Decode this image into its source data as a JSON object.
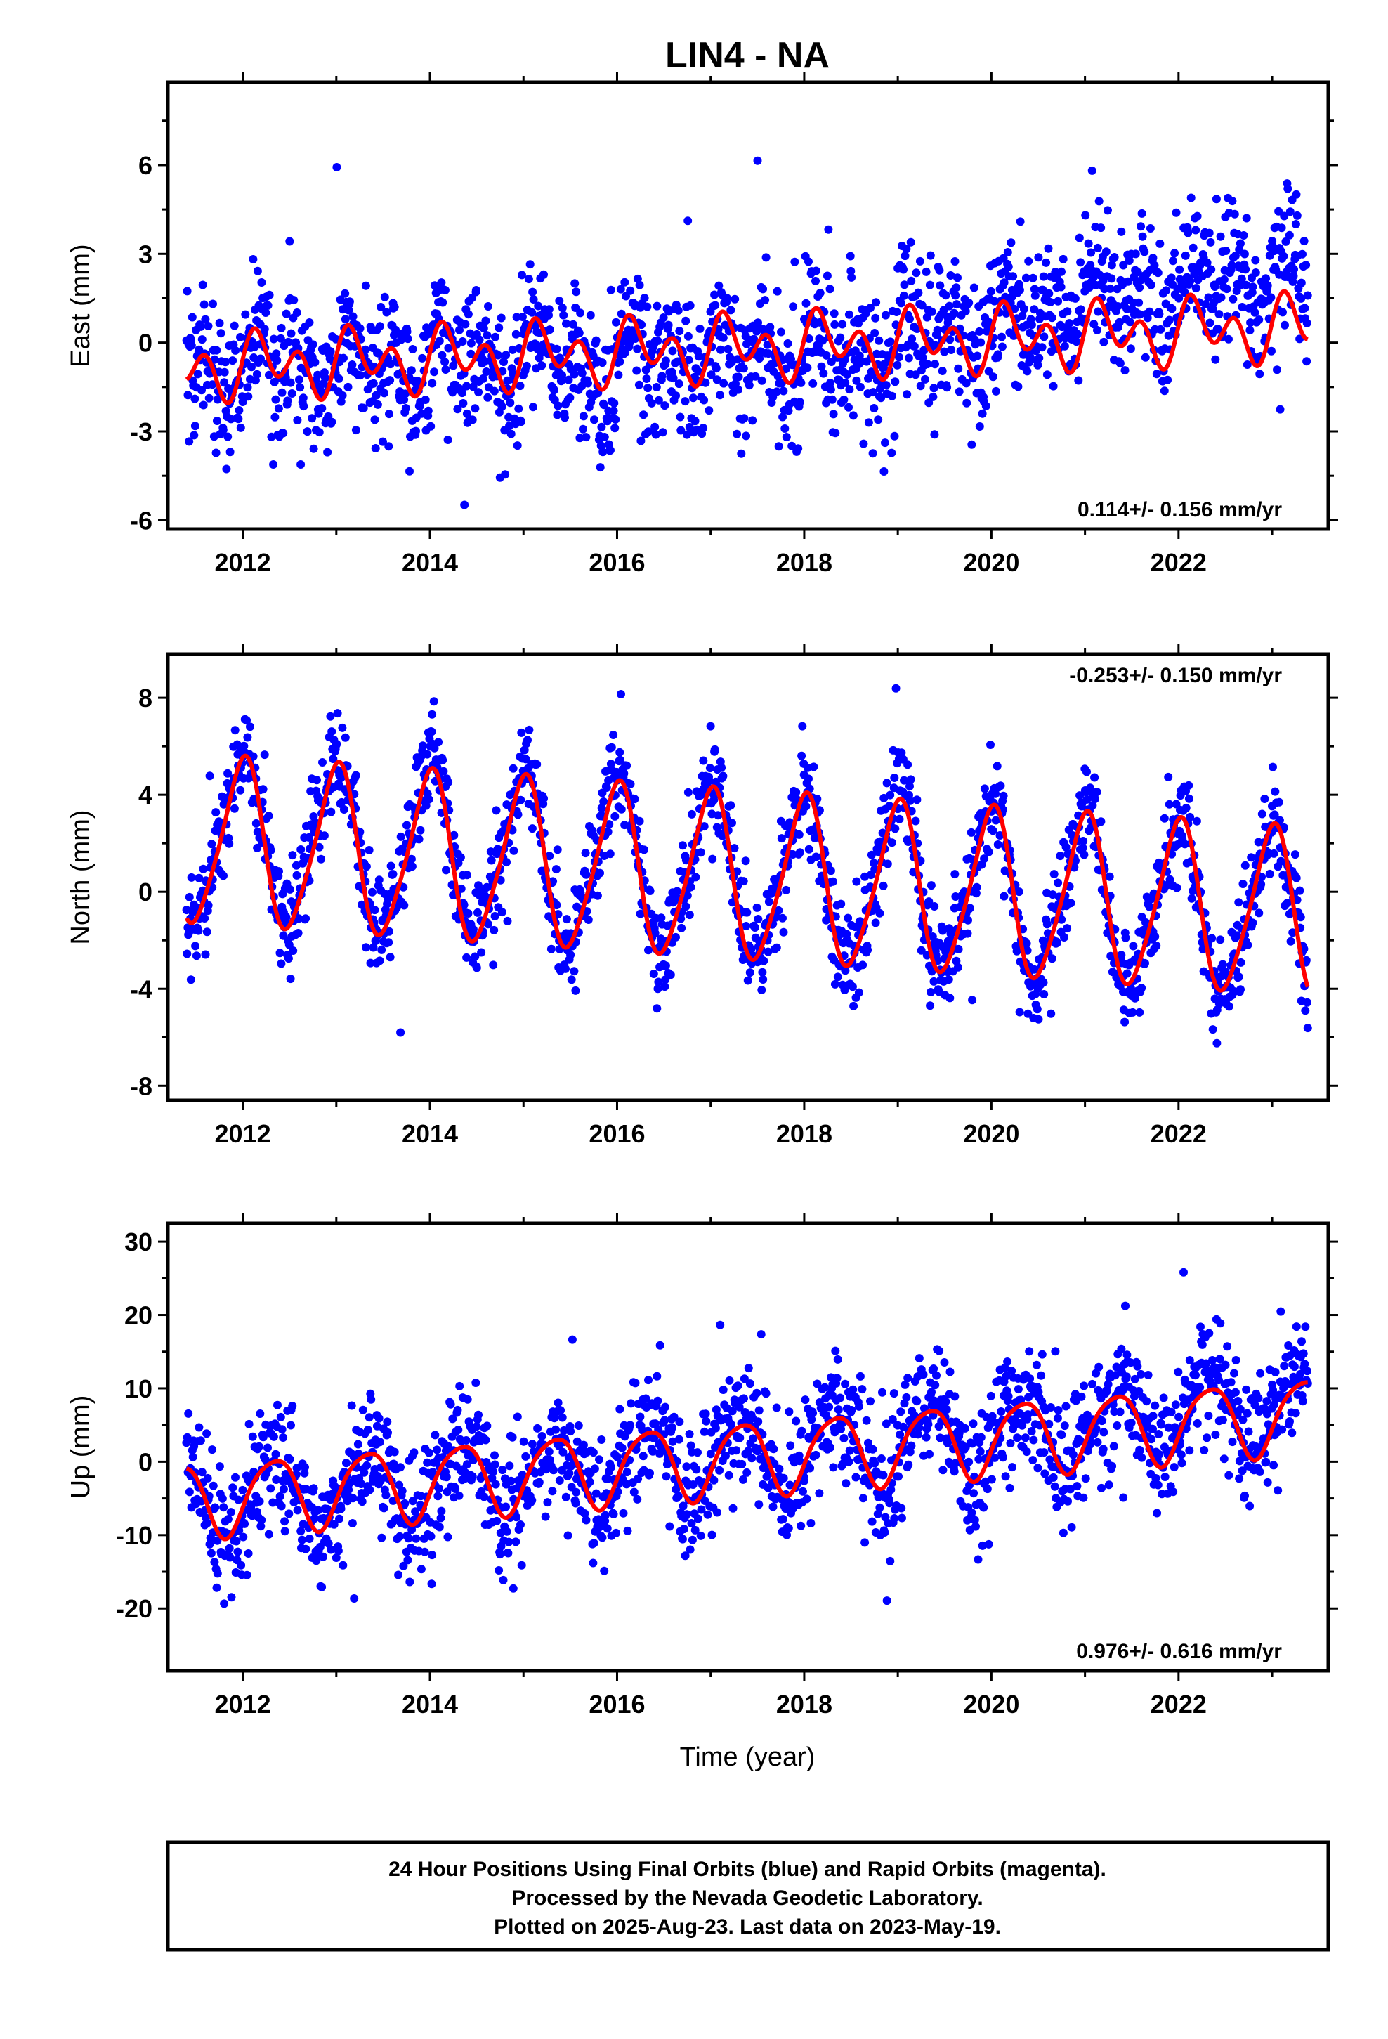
{
  "title": "LIN4 - NA",
  "xlabel": "Time (year)",
  "footer": {
    "lines": [
      "24 Hour Positions Using Final Orbits (blue) and Rapid Orbits (magenta).",
      "Processed by the Nevada Geodetic Laboratory.",
      "Plotted on 2025-Aug-23. Last data on 2023-May-19."
    ]
  },
  "colors": {
    "final_orbits": "#0000ff",
    "model_fit": "#ff0000",
    "frame": "#000000"
  },
  "chart_data": [
    {
      "type": "scatter",
      "component": "east",
      "ylabel": "East (mm)",
      "rate_label": "0.114+/- 0.156 mm/yr",
      "rate_position": "bottom-right",
      "xlim": [
        2011.2,
        2023.6
      ],
      "ylim": [
        -6.3,
        8.8
      ],
      "xticks": [
        2012,
        2014,
        2016,
        2018,
        2020,
        2022
      ],
      "yticks": [
        -6,
        -3,
        0,
        3,
        6
      ],
      "grid": false,
      "model": {
        "offset": -0.85,
        "rate": 0.114,
        "annual_amp": 0.6,
        "annual_phase": 0.1,
        "semiannual_amp": 0.8,
        "semiannual_phase": 0.2,
        "ref_epoch": 2011.4
      },
      "points": {
        "x_start": 2011.4,
        "x_end": 2023.38,
        "scatter_sd": 1.2,
        "envelope": [
          [
            2011.4,
            0.0
          ],
          [
            2018.5,
            -0.5
          ],
          [
            2019.8,
            0.3
          ],
          [
            2021.0,
            1.3
          ],
          [
            2023.4,
            1.8
          ]
        ]
      }
    },
    {
      "type": "scatter",
      "component": "north",
      "ylabel": "North (mm)",
      "rate_label": "-0.253+/- 0.150 mm/yr",
      "rate_position": "top-right",
      "xlim": [
        2011.2,
        2023.6
      ],
      "ylim": [
        -8.6,
        9.8
      ],
      "xticks": [
        2012,
        2014,
        2016,
        2018,
        2020,
        2022
      ],
      "yticks": [
        -8,
        -4,
        0,
        4,
        8
      ],
      "grid": false,
      "model": {
        "offset": 2.1,
        "rate": -0.253,
        "annual_amp": 3.4,
        "annual_phase": 1.6,
        "semiannual_amp": 0.5,
        "semiannual_phase": 0.4,
        "ref_epoch": 2011.4
      },
      "points": {
        "x_start": 2011.4,
        "x_end": 2023.38,
        "scatter_sd": 1.05,
        "envelope": [
          [
            2011.4,
            0.3
          ],
          [
            2023.4,
            0.0
          ]
        ]
      }
    },
    {
      "type": "scatter",
      "component": "up",
      "ylabel": "Up (mm)",
      "rate_label": "0.976+/- 0.616 mm/yr",
      "rate_position": "bottom-right",
      "xlim": [
        2011.2,
        2023.6
      ],
      "ylim": [
        -28.5,
        32.5
      ],
      "xticks": [
        2012,
        2014,
        2016,
        2018,
        2020,
        2022
      ],
      "yticks": [
        -20,
        -10,
        0,
        10,
        20,
        30
      ],
      "grid": false,
      "model": {
        "offset": -5.2,
        "rate": 0.976,
        "annual_amp": 5.0,
        "annual_phase": 5.8,
        "semiannual_amp": 0.8,
        "semiannual_phase": 1.0,
        "ref_epoch": 2011.4
      },
      "points": {
        "x_start": 2011.4,
        "x_end": 2023.38,
        "scatter_sd": 4.2,
        "envelope": [
          [
            2011.4,
            0.0
          ],
          [
            2020.5,
            0.0
          ],
          [
            2022.8,
            2.5
          ],
          [
            2023.4,
            0.5
          ]
        ]
      }
    }
  ]
}
